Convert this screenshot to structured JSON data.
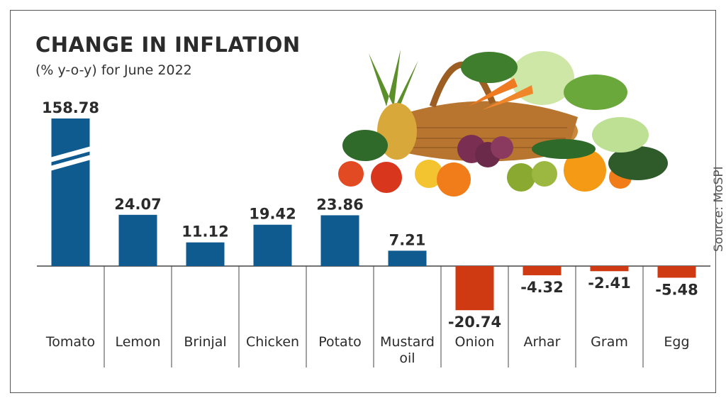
{
  "header": {
    "title": "CHANGE IN INFLATION",
    "subtitle": "(% y-o-y) for June 2022"
  },
  "source": "Source: MoSPI",
  "colors": {
    "positive": "#0f5a8f",
    "negative": "#cf3a12",
    "text": "#2b2b2b"
  },
  "chart_data": {
    "type": "bar",
    "title": "CHANGE IN INFLATION",
    "subtitle": "(% y-o-y) for June 2022",
    "categories": [
      "Tomato",
      "Lemon",
      "Brinjal",
      "Chicken",
      "Potato",
      "Mustard oil",
      "Onion",
      "Arhar",
      "Gram",
      "Egg"
    ],
    "values": [
      158.78,
      24.07,
      11.12,
      19.42,
      23.86,
      7.21,
      -20.74,
      -4.32,
      -2.41,
      -5.48
    ],
    "value_labels": [
      "158.78",
      "24.07",
      "11.12",
      "19.42",
      "23.86",
      "7.21",
      "-20.74",
      "-4.32",
      "-2.41",
      "-5.48"
    ],
    "axis_break_on": "Tomato",
    "ylim": [
      -25,
      40
    ],
    "grid": false,
    "legend": "none"
  }
}
